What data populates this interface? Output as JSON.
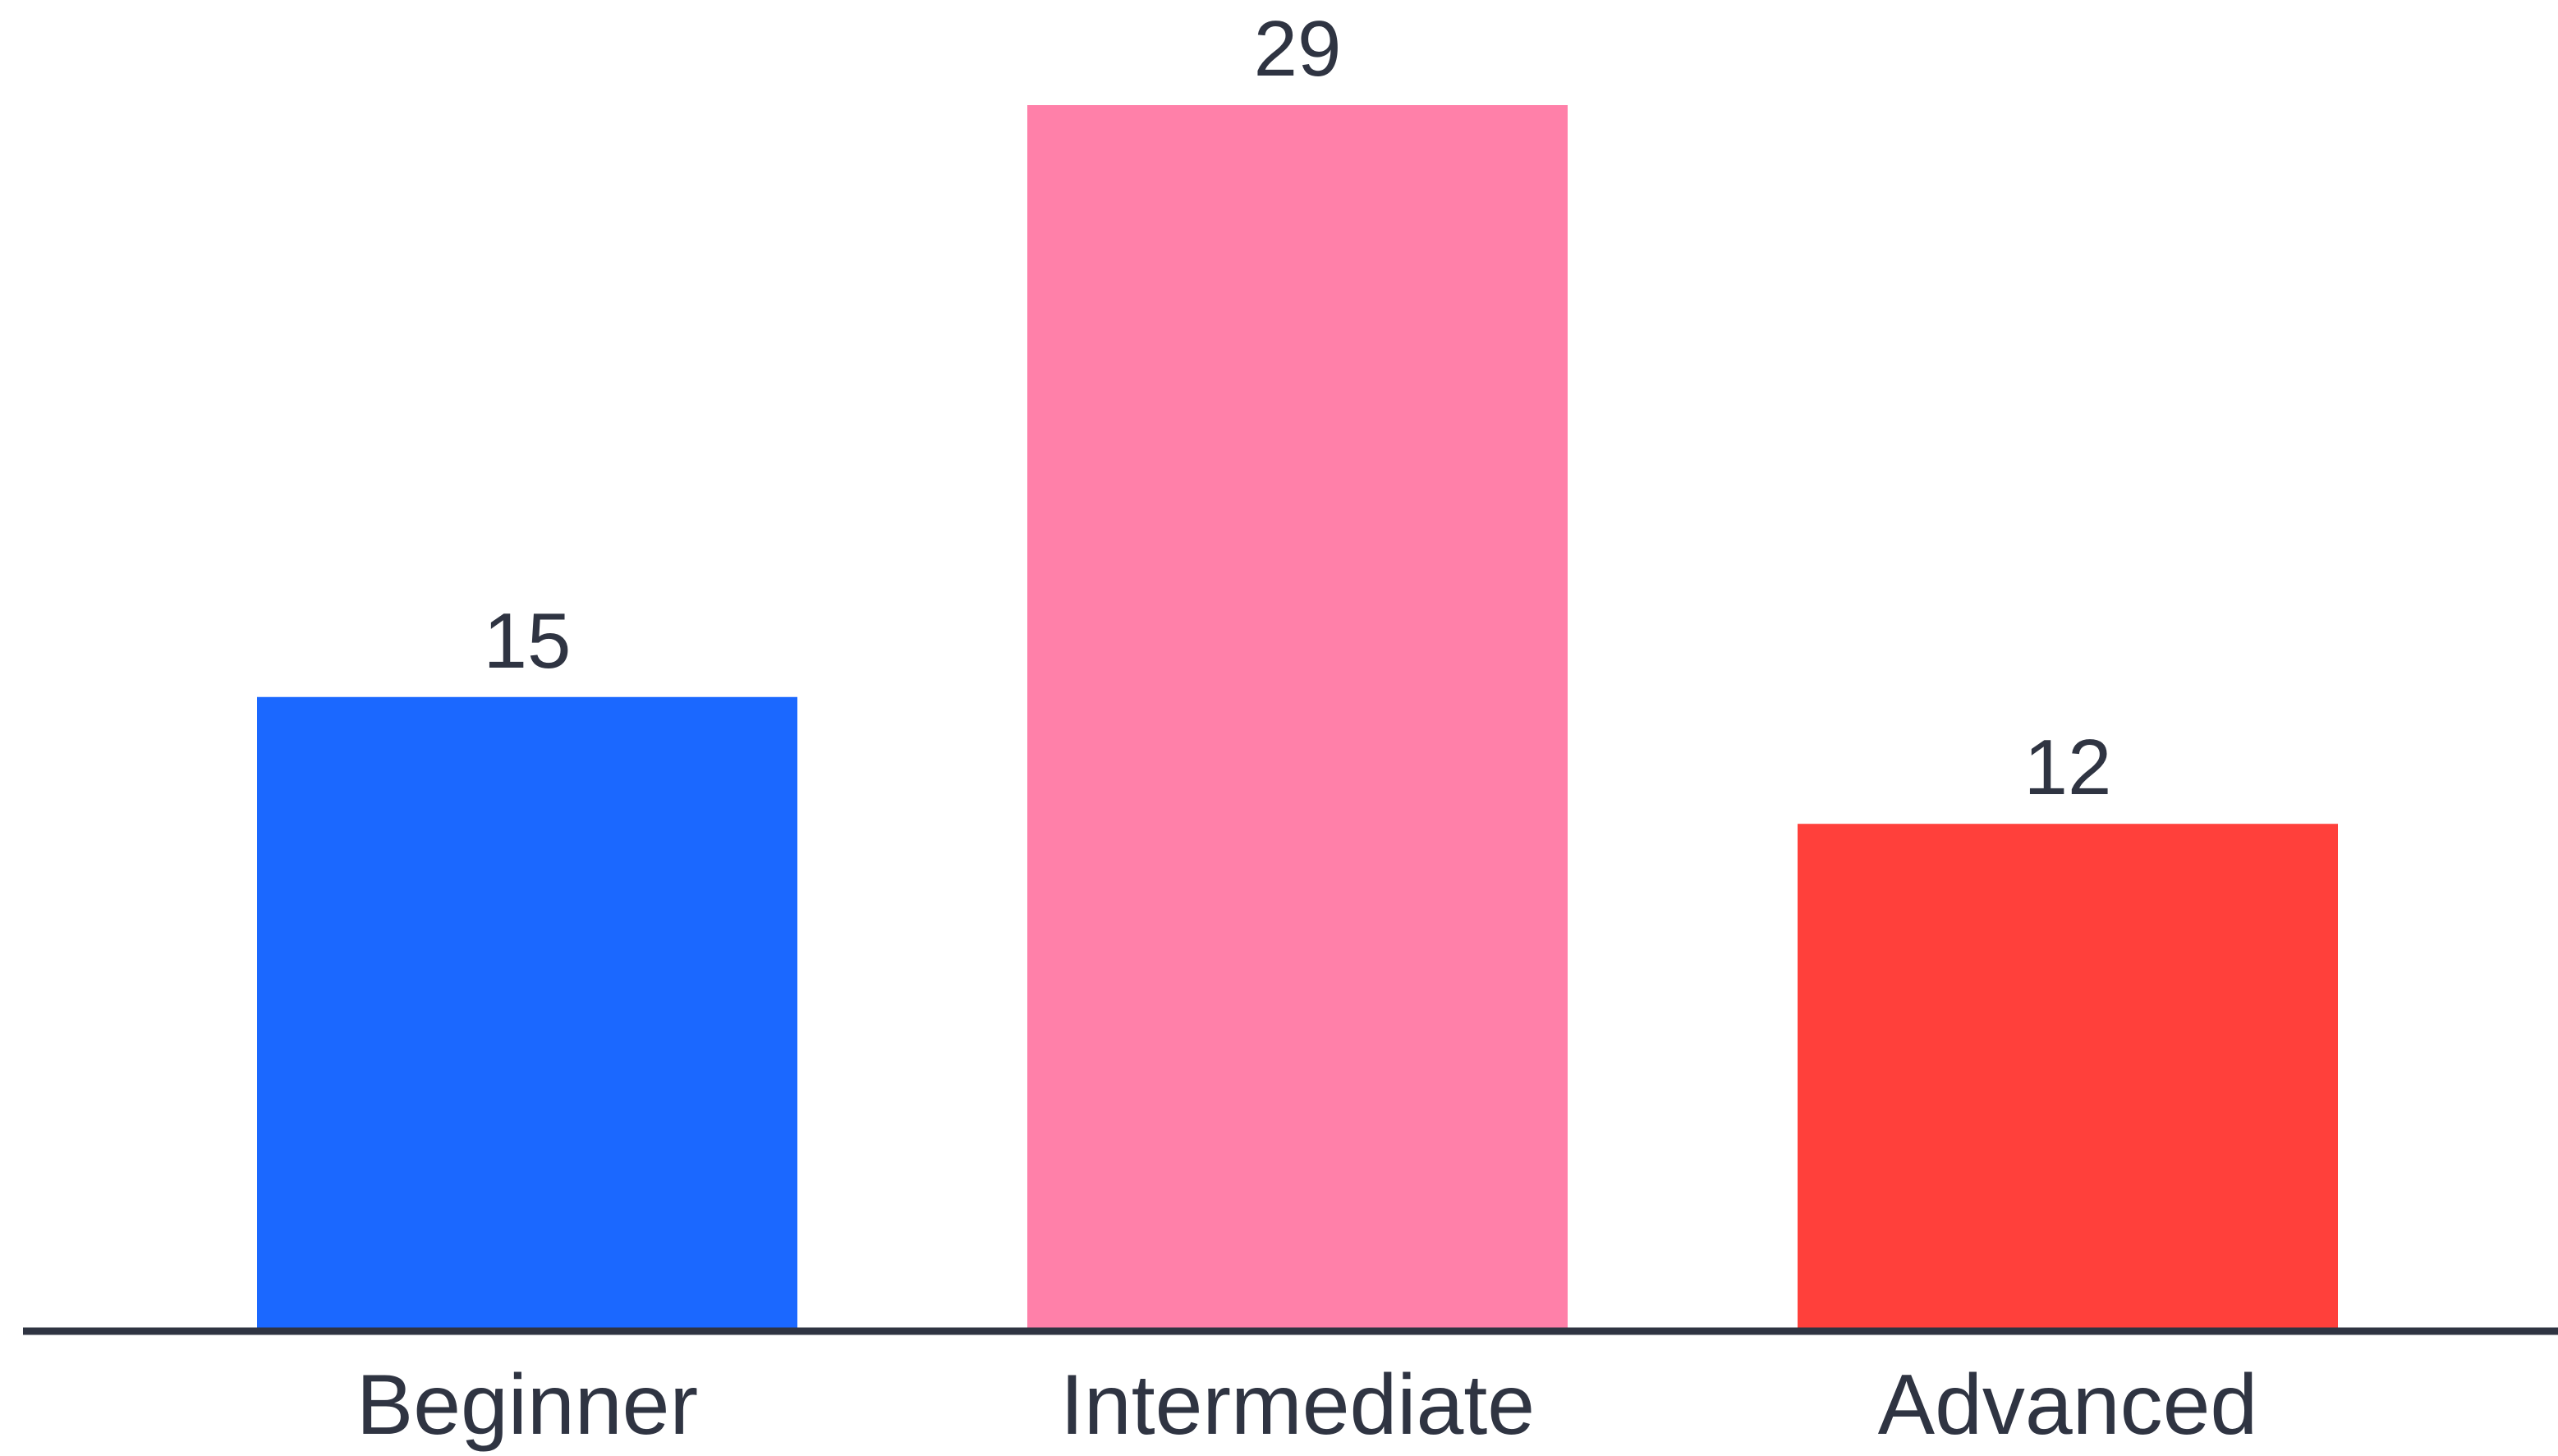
{
  "chart_data": {
    "type": "bar",
    "categories": [
      "Beginner",
      "Intermediate",
      "Advanced"
    ],
    "values": [
      15,
      29,
      12
    ],
    "data_labels": [
      "15",
      "29",
      "12"
    ],
    "colors": [
      "#1b68ff",
      "#ff80a9",
      "#ff403b"
    ],
    "axis_color": "#2f3442",
    "ylim": [
      0,
      29
    ],
    "grid": false,
    "title": "",
    "xlabel": "",
    "ylabel": ""
  }
}
